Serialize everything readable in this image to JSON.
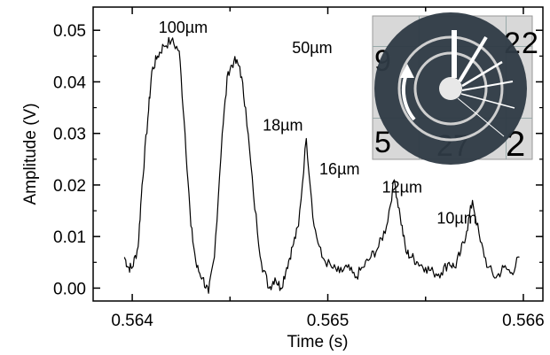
{
  "chart_data": {
    "type": "line",
    "xlabel": "Time (s)",
    "ylabel": "Amplitude (V)",
    "xlim": [
      0.5638,
      0.5661
    ],
    "ylim": [
      -0.0025,
      0.0545
    ],
    "x_ticks": [
      0.564,
      0.5645,
      0.565,
      0.5655,
      0.566
    ],
    "x_tick_labels": [
      "0.564",
      "",
      "0.565",
      "",
      "0.566"
    ],
    "y_ticks": [
      0.0,
      0.01,
      0.02,
      0.03,
      0.04,
      0.05
    ],
    "y_tick_labels": [
      "0.00",
      "0.01",
      "0.02",
      "0.03",
      "0.04",
      "0.05"
    ],
    "grid": false,
    "legend": "none",
    "series_color": "#000000",
    "series": [
      {
        "x": [
          0.56396,
          0.56398,
          0.564,
          0.56403,
          0.56405,
          0.56408,
          0.5641,
          0.56413,
          0.56416,
          0.5642,
          0.56424,
          0.56427,
          0.5643,
          0.56433,
          0.56436,
          0.56439,
          0.56442,
          0.56446,
          0.56449,
          0.56452,
          0.56455,
          0.56458,
          0.56462,
          0.56466,
          0.5647,
          0.56473,
          0.56476,
          0.56479,
          0.56482,
          0.56485,
          0.56489,
          0.56493,
          0.56497,
          0.56502,
          0.56506,
          0.5651,
          0.56514,
          0.56518,
          0.56522,
          0.56526,
          0.5653,
          0.56534,
          0.56537,
          0.5654,
          0.56543,
          0.56546,
          0.5655,
          0.56554,
          0.56558,
          0.56562,
          0.56565,
          0.56568,
          0.56571,
          0.56574,
          0.56578,
          0.56582,
          0.56586,
          0.5659,
          0.56594,
          0.56598
        ],
        "y": [
          0.006,
          0.004,
          0.004,
          0.008,
          0.02,
          0.033,
          0.042,
          0.045,
          0.047,
          0.048,
          0.046,
          0.03,
          0.012,
          0.004,
          0.002,
          -0.001,
          0.006,
          0.03,
          0.042,
          0.044,
          0.043,
          0.035,
          0.018,
          0.005,
          0.0,
          0.002,
          0.0,
          0.004,
          0.008,
          0.012,
          0.029,
          0.012,
          0.006,
          0.004,
          0.003,
          0.004,
          0.002,
          0.004,
          0.006,
          0.008,
          0.012,
          0.021,
          0.014,
          0.007,
          0.006,
          0.005,
          0.004,
          0.003,
          0.003,
          0.005,
          0.004,
          0.007,
          0.011,
          0.017,
          0.009,
          0.004,
          0.002,
          0.004,
          0.003,
          0.006
        ]
      }
    ],
    "annotations": [
      {
        "text": "100µm",
        "x": 0.56426,
        "y": 0.0485
      },
      {
        "text": "50µm",
        "x": 0.56492,
        "y": 0.0445
      },
      {
        "text": "18µm",
        "x": 0.56477,
        "y": 0.0295
      },
      {
        "text": "16µm",
        "x": 0.56506,
        "y": 0.021
      },
      {
        "text": "12µm",
        "x": 0.56538,
        "y": 0.0175
      },
      {
        "text": "10µm",
        "x": 0.56566,
        "y": 0.0115
      }
    ],
    "inset": {
      "type": "photograph",
      "description_icons": [
        "disc-icon",
        "rotation-arrow-icon"
      ],
      "disc_color": "#2e3a44",
      "ring_color": "#c8c8c8",
      "background_color": "#d6d6d6",
      "printed_digits": [
        "9",
        "2",
        "2",
        "5",
        "27",
        "2"
      ]
    }
  }
}
